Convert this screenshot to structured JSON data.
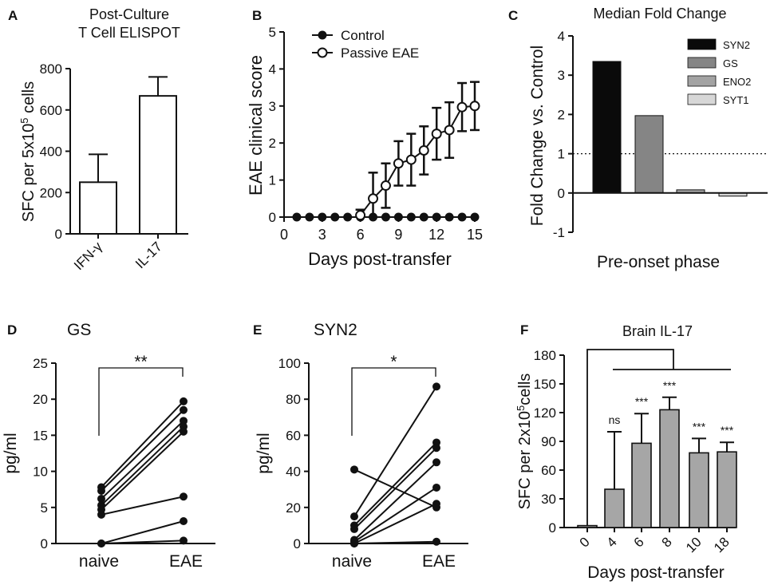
{
  "chart_data": [
    {
      "id": "A",
      "type": "bar",
      "panel_label": "A",
      "title": [
        "Post-Culture",
        "T Cell ELISPOT"
      ],
      "ylabel_parts": [
        "SFC per 5x10",
        "5",
        " cells"
      ],
      "categories": [
        "IFN-γ",
        "IL-17"
      ],
      "values": [
        250,
        668
      ],
      "errors": [
        135,
        92
      ],
      "ylim": [
        0,
        800
      ],
      "yticks": [
        "0",
        "200",
        "400",
        "600",
        "800"
      ]
    },
    {
      "id": "B",
      "type": "line",
      "panel_label": "B",
      "xlabel": "Days post-transfer",
      "ylabel": "EAE clinical score",
      "xlim": [
        0,
        15
      ],
      "ylim": [
        0,
        5
      ],
      "xticks": [
        "0",
        "3",
        "6",
        "9",
        "12",
        "15"
      ],
      "yticks": [
        "0",
        "1",
        "2",
        "3",
        "4",
        "5"
      ],
      "series": [
        {
          "name": "Control",
          "marker": "filled",
          "x": [
            1,
            2,
            3,
            4,
            5,
            6,
            7,
            8,
            9,
            10,
            11,
            12,
            13,
            14,
            15
          ],
          "y": [
            0,
            0,
            0,
            0,
            0,
            0,
            0,
            0,
            0,
            0,
            0,
            0,
            0,
            0,
            0
          ]
        },
        {
          "name": "Passive EAE",
          "marker": "open",
          "x": [
            6,
            7,
            8,
            9,
            10,
            11,
            12,
            13,
            14,
            15
          ],
          "y": [
            0.05,
            0.5,
            0.85,
            1.45,
            1.55,
            1.8,
            2.25,
            2.35,
            2.97,
            3.0
          ],
          "err": [
            0.15,
            0.7,
            0.6,
            0.6,
            0.7,
            0.65,
            0.7,
            0.75,
            0.65,
            0.65
          ]
        }
      ]
    },
    {
      "id": "C",
      "type": "bar",
      "panel_label": "C",
      "title": "Median Fold Change",
      "ylabel": "Fold Change vs. Control",
      "xlabel": "Pre-onset phase",
      "ylim": [
        -1,
        4
      ],
      "yticks": [
        "-1",
        "0",
        "1",
        "2",
        "3",
        "4"
      ],
      "reference_line": 1,
      "series": [
        {
          "name": "SYN2",
          "value": 3.35,
          "color": "#0a0a0a"
        },
        {
          "name": "GS",
          "value": 1.97,
          "color": "#858585"
        },
        {
          "name": "ENO2",
          "value": 0.08,
          "color": "#a3a3a3"
        },
        {
          "name": "SYT1",
          "value": -0.08,
          "color": "#d7d7d7"
        }
      ]
    },
    {
      "id": "D",
      "type": "scatter",
      "panel_label": "D",
      "title": "GS",
      "ylabel": "pg/ml",
      "categories": [
        "naive",
        "EAE"
      ],
      "ylim": [
        0,
        25
      ],
      "yticks": [
        "0",
        "5",
        "10",
        "15",
        "20",
        "25"
      ],
      "significance": "**",
      "pairs": [
        [
          7.8,
          19.7
        ],
        [
          7.3,
          18.5
        ],
        [
          6.2,
          17
        ],
        [
          5.3,
          16.2
        ],
        [
          4.7,
          15.5
        ],
        [
          4.0,
          6.5
        ],
        [
          0,
          3.1
        ],
        [
          0,
          0.4
        ]
      ]
    },
    {
      "id": "E",
      "type": "scatter",
      "panel_label": "E",
      "title": "SYN2",
      "ylabel": "pg/ml",
      "categories": [
        "naive",
        "EAE"
      ],
      "ylim": [
        0,
        100
      ],
      "yticks": [
        "0",
        "20",
        "40",
        "60",
        "80",
        "100"
      ],
      "significance": "*",
      "pairs": [
        [
          41,
          20
        ],
        [
          15,
          87
        ],
        [
          10,
          56
        ],
        [
          8,
          53
        ],
        [
          2,
          45
        ],
        [
          1,
          31
        ],
        [
          0,
          22
        ],
        [
          0,
          1
        ]
      ]
    },
    {
      "id": "F",
      "type": "bar",
      "panel_label": "F",
      "title": "Brain IL-17",
      "xlabel": "Days post-transfer",
      "ylabel_parts": [
        "SFC per 2x10",
        "5",
        "cells"
      ],
      "categories": [
        "0",
        "4",
        "6",
        "8",
        "10",
        "18"
      ],
      "values": [
        2,
        40,
        88,
        123,
        78,
        79
      ],
      "errors": [
        0,
        60,
        31,
        13,
        15,
        10
      ],
      "significance": [
        "",
        "ns",
        "***",
        "***",
        "***",
        "***"
      ],
      "ylim": [
        0,
        180
      ],
      "yticks": [
        "0",
        "30",
        "60",
        "90",
        "120",
        "150",
        "180"
      ]
    }
  ]
}
